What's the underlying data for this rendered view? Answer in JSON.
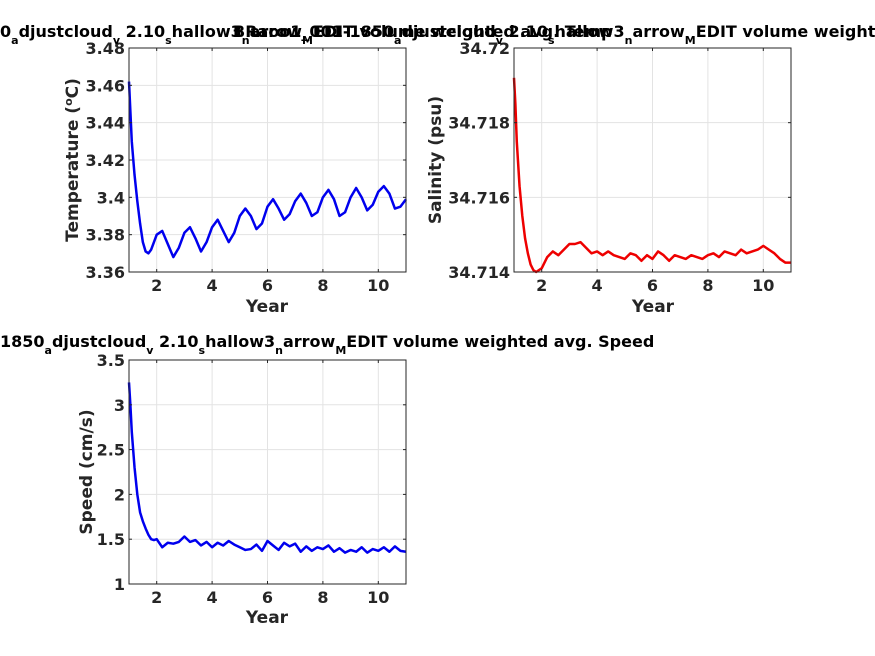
{
  "chart_data": [
    {
      "type": "line",
      "title_parts": [
        "0",
        "a",
        "djustcloud",
        "v",
        " 2.10",
        "s",
        "hallow3",
        "n",
        "arrow",
        "M",
        "EDIT volume weighted avg. Temp"
      ],
      "xlabel": "Year",
      "ylabel": "Temperature (°C)",
      "ylabel_sup": "o",
      "xlim": [
        1,
        11
      ],
      "ylim": [
        3.36,
        3.48
      ],
      "xticks": [
        2,
        4,
        6,
        8,
        10
      ],
      "yticks": [
        3.36,
        3.38,
        3.4,
        3.42,
        3.44,
        3.46,
        3.48
      ],
      "ytick_labels": [
        "3.36",
        "3.38",
        "3.4",
        "3.42",
        "3.44",
        "3.46",
        "3.48"
      ],
      "grid": true,
      "color": "#0000ee",
      "series": [
        {
          "x": [
            1.0,
            1.1,
            1.2,
            1.3,
            1.4,
            1.5,
            1.6,
            1.7,
            1.8,
            1.9,
            2.0,
            2.2,
            2.4,
            2.6,
            2.8,
            3.0,
            3.2,
            3.4,
            3.6,
            3.8,
            4.0,
            4.2,
            4.4,
            4.6,
            4.8,
            5.0,
            5.2,
            5.4,
            5.6,
            5.8,
            6.0,
            6.2,
            6.4,
            6.6,
            6.8,
            7.0,
            7.2,
            7.4,
            7.6,
            7.8,
            8.0,
            8.2,
            8.4,
            8.6,
            8.8,
            9.0,
            9.2,
            9.4,
            9.6,
            9.8,
            10.0,
            10.2,
            10.4,
            10.6,
            10.8,
            11.0
          ],
          "y": [
            3.462,
            3.43,
            3.412,
            3.398,
            3.386,
            3.376,
            3.371,
            3.37,
            3.372,
            3.376,
            3.38,
            3.382,
            3.375,
            3.368,
            3.373,
            3.381,
            3.384,
            3.378,
            3.371,
            3.376,
            3.384,
            3.388,
            3.382,
            3.376,
            3.381,
            3.39,
            3.394,
            3.39,
            3.383,
            3.386,
            3.395,
            3.399,
            3.394,
            3.388,
            3.391,
            3.398,
            3.402,
            3.397,
            3.39,
            3.392,
            3.4,
            3.404,
            3.399,
            3.39,
            3.392,
            3.4,
            3.405,
            3.4,
            3.393,
            3.396,
            3.403,
            3.406,
            3.402,
            3.394,
            3.395,
            3.399
          ]
        }
      ]
    },
    {
      "type": "line",
      "title_parts": [
        "BRaoo1_001-1850",
        "a",
        "djustcloud",
        "v",
        " 2.10",
        "s",
        "hallow3",
        "n",
        "arrow",
        "M",
        "EDIT volume weighted avg. Salinity"
      ],
      "xlabel": "Year",
      "ylabel": "Salinity (psu)",
      "xlim": [
        1,
        11
      ],
      "ylim": [
        34.714,
        34.72
      ],
      "xticks": [
        2,
        4,
        6,
        8,
        10
      ],
      "yticks": [
        34.714,
        34.716,
        34.718,
        34.72
      ],
      "ytick_labels": [
        "34.714",
        "34.716",
        "34.718",
        "34.72"
      ],
      "grid": true,
      "color": "#ee0000",
      "series": [
        {
          "x": [
            1.0,
            1.05,
            1.1,
            1.2,
            1.3,
            1.4,
            1.5,
            1.6,
            1.7,
            1.8,
            1.9,
            2.0,
            2.2,
            2.4,
            2.6,
            2.8,
            3.0,
            3.2,
            3.4,
            3.6,
            3.8,
            4.0,
            4.2,
            4.4,
            4.6,
            4.8,
            5.0,
            5.2,
            5.4,
            5.6,
            5.8,
            6.0,
            6.2,
            6.4,
            6.6,
            6.8,
            7.0,
            7.2,
            7.4,
            7.6,
            7.8,
            8.0,
            8.2,
            8.4,
            8.6,
            8.8,
            9.0,
            9.2,
            9.4,
            9.6,
            9.8,
            10.0,
            10.2,
            10.4,
            10.6,
            10.8,
            11.0
          ],
          "y": [
            34.7192,
            34.7185,
            34.7175,
            34.7163,
            34.7155,
            34.7149,
            34.7145,
            34.7142,
            34.71405,
            34.714,
            34.71405,
            34.7141,
            34.7144,
            34.71455,
            34.71445,
            34.7146,
            34.71475,
            34.71475,
            34.7148,
            34.71465,
            34.7145,
            34.71455,
            34.71445,
            34.71455,
            34.71445,
            34.7144,
            34.71435,
            34.7145,
            34.71445,
            34.7143,
            34.71445,
            34.71435,
            34.71455,
            34.71445,
            34.7143,
            34.71445,
            34.7144,
            34.71435,
            34.71445,
            34.7144,
            34.71435,
            34.71445,
            34.7145,
            34.7144,
            34.71455,
            34.7145,
            34.71445,
            34.7146,
            34.7145,
            34.71455,
            34.7146,
            34.7147,
            34.7146,
            34.7145,
            34.71435,
            34.71425,
            34.71425
          ]
        }
      ]
    },
    {
      "type": "line",
      "title_parts": [
        "1850",
        "a",
        "djustcloud",
        "v",
        " 2.10",
        "s",
        "hallow3",
        "n",
        "arrow",
        "M",
        "EDIT volume weighted avg. Speed"
      ],
      "xlabel": "Year",
      "ylabel": "Speed (cm/s)",
      "xlim": [
        1,
        11
      ],
      "ylim": [
        1,
        3.5
      ],
      "xticks": [
        2,
        4,
        6,
        8,
        10
      ],
      "yticks": [
        1,
        1.5,
        2,
        2.5,
        3,
        3.5
      ],
      "ytick_labels": [
        "1",
        "1.5",
        "2",
        "2.5",
        "3",
        "3.5"
      ],
      "grid": true,
      "color": "#0000ee",
      "series": [
        {
          "x": [
            1.0,
            1.05,
            1.1,
            1.2,
            1.3,
            1.4,
            1.5,
            1.6,
            1.7,
            1.8,
            1.9,
            2.0,
            2.2,
            2.4,
            2.6,
            2.8,
            3.0,
            3.2,
            3.4,
            3.6,
            3.8,
            4.0,
            4.2,
            4.4,
            4.6,
            4.8,
            5.0,
            5.2,
            5.4,
            5.6,
            5.8,
            6.0,
            6.2,
            6.4,
            6.6,
            6.8,
            7.0,
            7.2,
            7.4,
            7.6,
            7.8,
            8.0,
            8.2,
            8.4,
            8.6,
            8.8,
            9.0,
            9.2,
            9.4,
            9.6,
            9.8,
            10.0,
            10.2,
            10.4,
            10.6,
            10.8,
            11.0
          ],
          "y": [
            3.25,
            3.0,
            2.7,
            2.3,
            2.0,
            1.8,
            1.7,
            1.62,
            1.55,
            1.5,
            1.49,
            1.5,
            1.41,
            1.46,
            1.45,
            1.47,
            1.53,
            1.47,
            1.49,
            1.43,
            1.47,
            1.41,
            1.46,
            1.43,
            1.48,
            1.44,
            1.41,
            1.38,
            1.39,
            1.44,
            1.37,
            1.48,
            1.43,
            1.38,
            1.46,
            1.42,
            1.45,
            1.36,
            1.42,
            1.37,
            1.41,
            1.39,
            1.43,
            1.36,
            1.4,
            1.35,
            1.38,
            1.36,
            1.41,
            1.35,
            1.39,
            1.37,
            1.41,
            1.36,
            1.42,
            1.37,
            1.36
          ]
        }
      ]
    }
  ]
}
